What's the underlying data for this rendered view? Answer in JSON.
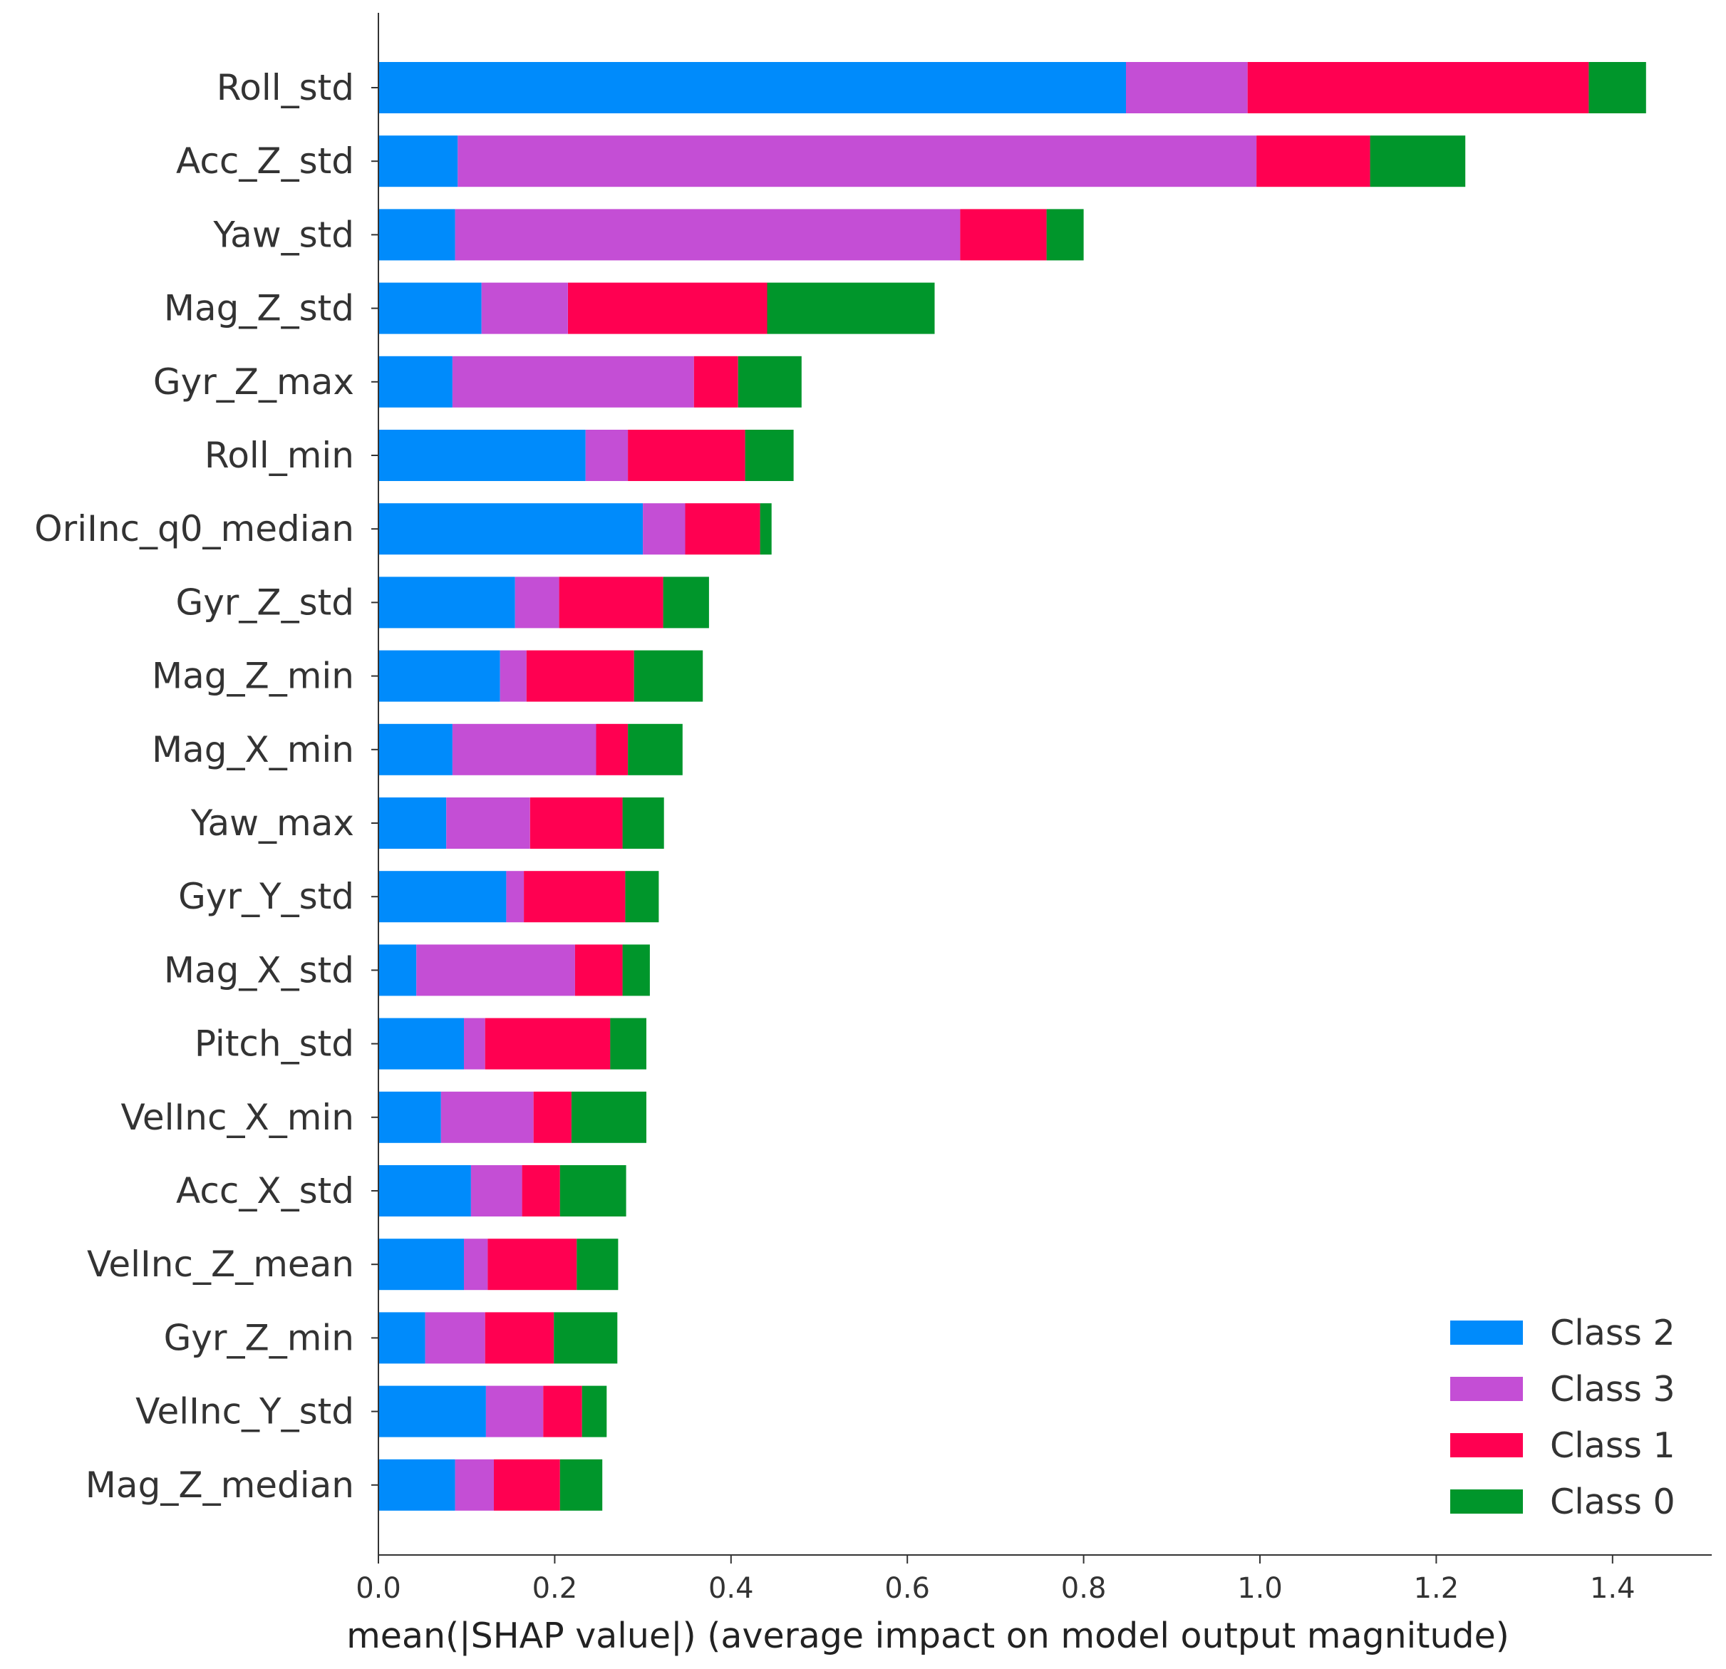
{
  "chart_data": {
    "type": "bar",
    "orientation": "horizontal",
    "stacked": true,
    "title": "",
    "xlabel": "mean(|SHAP value|) (average impact on model output magnitude)",
    "ylabel": "",
    "xlim": [
      0,
      1.5
    ],
    "x_ticks": [
      "0.0",
      "0.2",
      "0.4",
      "0.6",
      "0.8",
      "1.0",
      "1.2",
      "1.4"
    ],
    "grid": false,
    "legend_position": "lower-right",
    "categories": [
      "Roll_std",
      "Acc_Z_std",
      "Yaw_std",
      "Mag_Z_std",
      "Gyr_Z_max",
      "Roll_min",
      "OriInc_q0_median",
      "Gyr_Z_std",
      "Mag_Z_min",
      "Mag_X_min",
      "Yaw_max",
      "Gyr_Y_std",
      "Mag_X_std",
      "Pitch_std",
      "VelInc_X_min",
      "Acc_X_std",
      "VelInc_Z_mean",
      "Gyr_Z_min",
      "VelInc_Y_std",
      "Mag_Z_median"
    ],
    "series": [
      {
        "name": "Class 2",
        "color": "#008bfb",
        "values": [
          0.848,
          0.09,
          0.087,
          0.117,
          0.084,
          0.235,
          0.3,
          0.155,
          0.138,
          0.084,
          0.077,
          0.145,
          0.043,
          0.097,
          0.071,
          0.105,
          0.097,
          0.053,
          0.122,
          0.087
        ]
      },
      {
        "name": "Class 3",
        "color": "#c44ed5",
        "values": [
          0.138,
          0.906,
          0.573,
          0.098,
          0.274,
          0.048,
          0.048,
          0.05,
          0.03,
          0.163,
          0.095,
          0.02,
          0.18,
          0.024,
          0.105,
          0.058,
          0.027,
          0.068,
          0.065,
          0.044
        ]
      },
      {
        "name": "Class 1",
        "color": "#ff0051",
        "values": [
          0.387,
          0.129,
          0.098,
          0.226,
          0.05,
          0.133,
          0.085,
          0.118,
          0.122,
          0.036,
          0.105,
          0.115,
          0.054,
          0.142,
          0.043,
          0.043,
          0.101,
          0.078,
          0.044,
          0.075
        ]
      },
      {
        "name": "Class 0",
        "color": "#00962b",
        "values": [
          0.065,
          0.108,
          0.042,
          0.19,
          0.072,
          0.055,
          0.013,
          0.052,
          0.078,
          0.062,
          0.047,
          0.038,
          0.031,
          0.041,
          0.085,
          0.075,
          0.047,
          0.072,
          0.028,
          0.048
        ]
      }
    ],
    "legend_order": [
      "Class 2",
      "Class 3",
      "Class 1",
      "Class 0"
    ]
  }
}
